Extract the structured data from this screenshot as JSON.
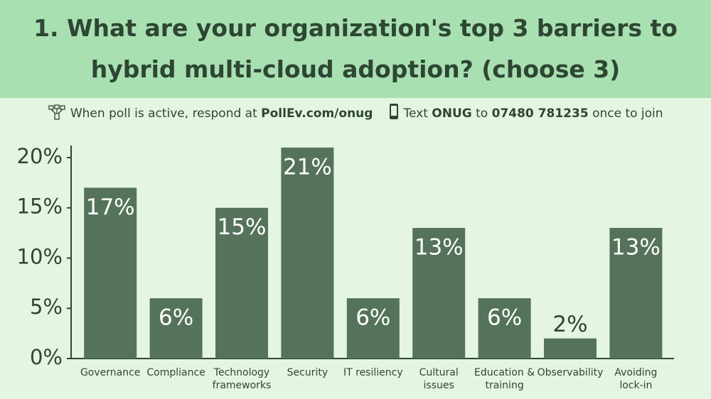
{
  "title": "1. What are your organization's top 3 barriers to hybrid multi-cloud adoption? (choose 3)",
  "instructions": {
    "web": {
      "text": "When poll is active, respond at",
      "link": "PollEv.com/onug"
    },
    "sms": {
      "text": "Text",
      "keyword": "ONUG",
      "to": "to",
      "number": "07480 781235",
      "end": "once to join"
    }
  },
  "chart_data": {
    "type": "bar",
    "categories": [
      "Governance",
      "Compliance",
      "Technology\nframeworks",
      "Security",
      "IT resiliency",
      "Cultural\nissues",
      "Education &\ntraining",
      "Observability",
      "Avoiding\nlock-in"
    ],
    "values": [
      17,
      6,
      15,
      21,
      6,
      13,
      6,
      2,
      13
    ],
    "value_labels": [
      "17%",
      "6%",
      "15%",
      "21%",
      "6%",
      "13%",
      "6%",
      "2%",
      "13%"
    ],
    "color": "#55735a",
    "ylim": [
      0,
      21.2
    ],
    "yticks": [
      {
        "value": 0,
        "label": "0%"
      },
      {
        "value": 5,
        "label": "5%"
      },
      {
        "value": 10,
        "label": "10%"
      },
      {
        "value": 15,
        "label": "15%"
      },
      {
        "value": 20,
        "label": "20%"
      }
    ]
  }
}
